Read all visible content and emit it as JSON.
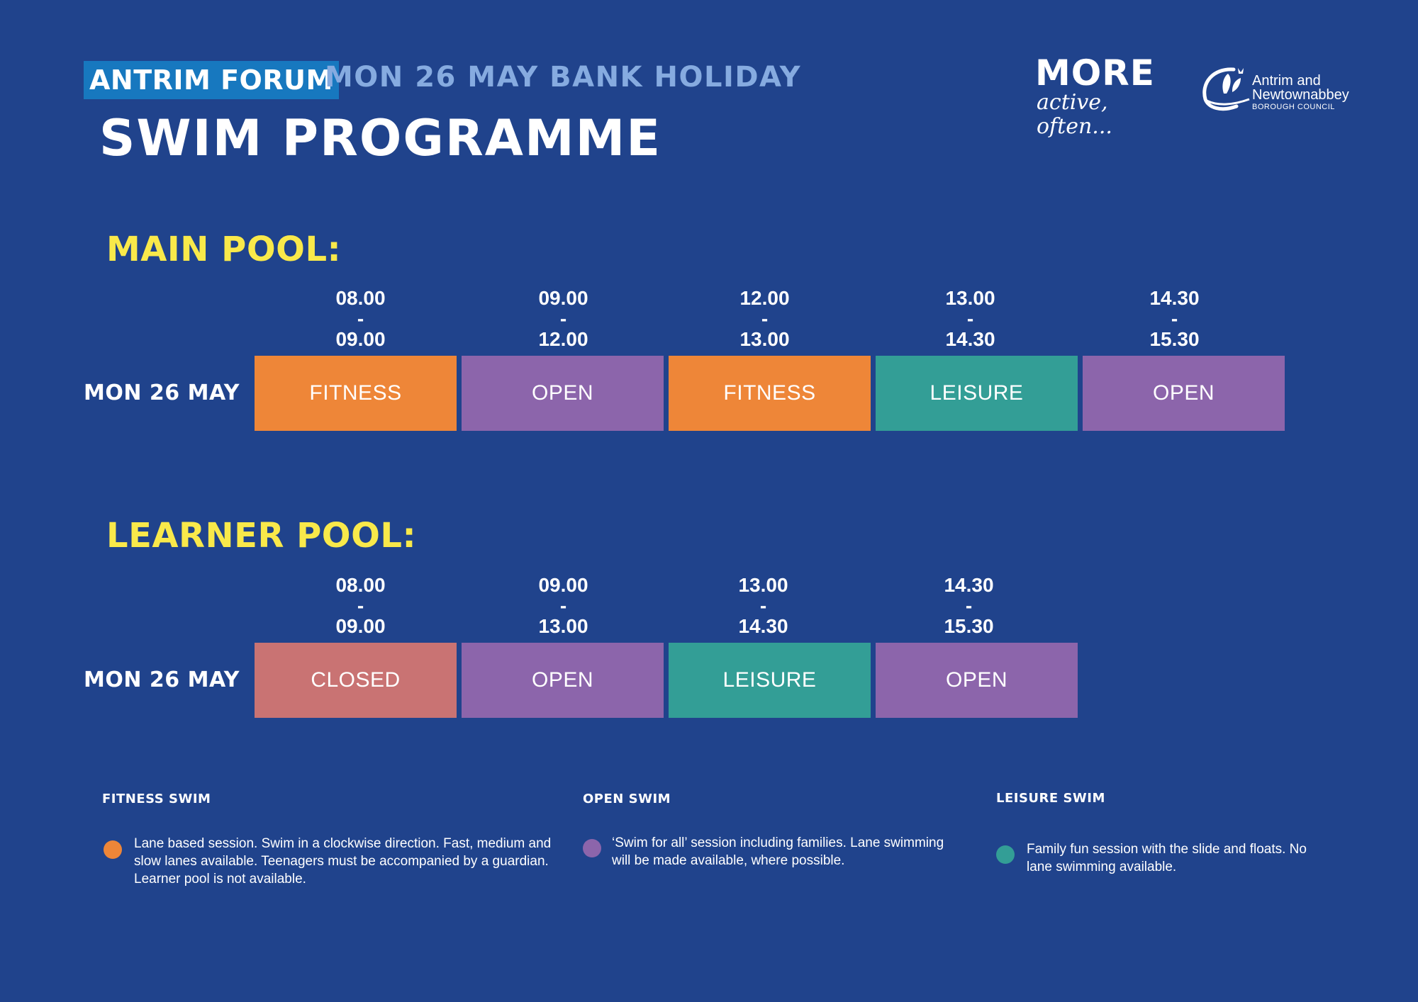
{
  "header": {
    "venue": "ANTRIM FORUM",
    "event": "MON 26 MAY BANK HOLIDAY",
    "title": "SWIM PROGRAMME"
  },
  "logos": {
    "more_main": "MORE",
    "more_tagline": "active, often...",
    "council_line1": "Antrim and",
    "council_line2": "Newtownabbey",
    "council_line3": "BOROUGH COUNCIL"
  },
  "colors": {
    "background": "#20438c",
    "fitness": "#ee8638",
    "open": "#8c65ab",
    "leisure": "#339e96",
    "closed": "#c97373",
    "heading_yellow": "#f9e94a"
  },
  "main_pool": {
    "heading": "MAIN POOL:",
    "day": "MON 26 MAY",
    "sessions": [
      {
        "start": "08.00",
        "sep": "-",
        "end": "09.00",
        "label": "FITNESS",
        "type": "fitness"
      },
      {
        "start": "09.00",
        "sep": "-",
        "end": "12.00",
        "label": "OPEN",
        "type": "open"
      },
      {
        "start": "12.00",
        "sep": "-",
        "end": "13.00",
        "label": "FITNESS",
        "type": "fitness"
      },
      {
        "start": "13.00",
        "sep": "-",
        "end": "14.30",
        "label": "LEISURE",
        "type": "leisure"
      },
      {
        "start": "14.30",
        "sep": "-",
        "end": "15.30",
        "label": "OPEN",
        "type": "open"
      }
    ]
  },
  "learner_pool": {
    "heading": "LEARNER POOL:",
    "day": "MON 26 MAY",
    "sessions": [
      {
        "start": "08.00",
        "sep": "-",
        "end": "09.00",
        "label": "CLOSED",
        "type": "closed"
      },
      {
        "start": "09.00",
        "sep": "-",
        "end": "13.00",
        "label": "OPEN",
        "type": "open"
      },
      {
        "start": "13.00",
        "sep": "-",
        "end": "14.30",
        "label": "LEISURE",
        "type": "leisure"
      },
      {
        "start": "14.30",
        "sep": "-",
        "end": "15.30",
        "label": "OPEN",
        "type": "open"
      }
    ]
  },
  "legend": [
    {
      "title": "FITNESS SWIM",
      "type": "fitness",
      "text": "Lane based session. Swim in a clockwise direction. Fast, medium and slow lanes available. Teenagers must be accompanied by a guardian. Learner pool is not available."
    },
    {
      "title": "OPEN SWIM",
      "type": "open",
      "text": "‘Swim for all’ session including families. Lane swimming will be made available, where possible."
    },
    {
      "title": "LEISURE SWIM",
      "type": "leisure",
      "text": "Family fun session with the slide and floats. No lane swimming available."
    }
  ]
}
